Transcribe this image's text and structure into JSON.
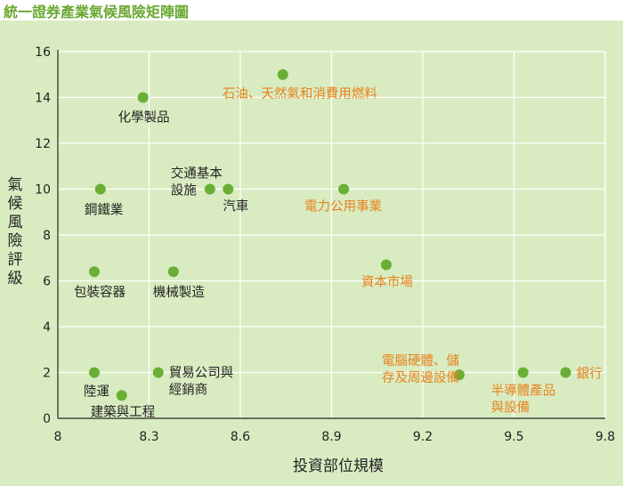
{
  "title": "統一證券產業氣候風險矩陣圖",
  "chart_data": {
    "type": "scatter",
    "title": "統一證券產業氣候風險矩陣圖",
    "xlabel": "投資部位規模",
    "ylabel": "氣候風險評級",
    "xlim": [
      8,
      9.8
    ],
    "ylim": [
      0,
      16
    ],
    "xticks": [
      "8",
      "8.3",
      "8.6",
      "8.9",
      "9.2",
      "9.5",
      "9.8"
    ],
    "yticks": [
      "0",
      "2",
      "4",
      "6",
      "8",
      "10",
      "12",
      "14",
      "16"
    ],
    "grid": true,
    "marker_color": "#6aaf35",
    "colors": {
      "black_label": "#222222",
      "orange_label": "#e8821e",
      "grid": "#ffffff",
      "background": "#d9ecc1",
      "title": "#6aa832"
    },
    "points": [
      {
        "label": "石油、天然氣和消費用燃料",
        "x": 8.74,
        "y": 15.0,
        "color": "orange"
      },
      {
        "label": "化學製品",
        "x": 8.28,
        "y": 14.0,
        "color": "black"
      },
      {
        "label": "交通基本設施",
        "x": 8.5,
        "y": 10.0,
        "color": "black"
      },
      {
        "label": "汽車",
        "x": 8.56,
        "y": 10.0,
        "color": "black"
      },
      {
        "label": "電力公用事業",
        "x": 8.94,
        "y": 10.0,
        "color": "orange"
      },
      {
        "label": "鋼鐵業",
        "x": 8.14,
        "y": 10.0,
        "color": "black"
      },
      {
        "label": "包裝容器",
        "x": 8.12,
        "y": 6.4,
        "color": "black"
      },
      {
        "label": "機械製造",
        "x": 8.38,
        "y": 6.4,
        "color": "black"
      },
      {
        "label": "資本市場",
        "x": 9.08,
        "y": 6.7,
        "color": "orange"
      },
      {
        "label": "陸運",
        "x": 8.12,
        "y": 2.0,
        "color": "black"
      },
      {
        "label": "貿易公司與經銷商",
        "x": 8.33,
        "y": 2.0,
        "color": "black"
      },
      {
        "label": "建築與工程",
        "x": 8.21,
        "y": 1.0,
        "color": "black"
      },
      {
        "label": "電腦硬體、儲存及周邊設備",
        "x": 9.32,
        "y": 1.9,
        "color": "orange"
      },
      {
        "label": "半導體產品與設備",
        "x": 9.53,
        "y": 2.0,
        "color": "orange"
      },
      {
        "label": "銀行",
        "x": 9.67,
        "y": 2.0,
        "color": "orange"
      }
    ]
  }
}
